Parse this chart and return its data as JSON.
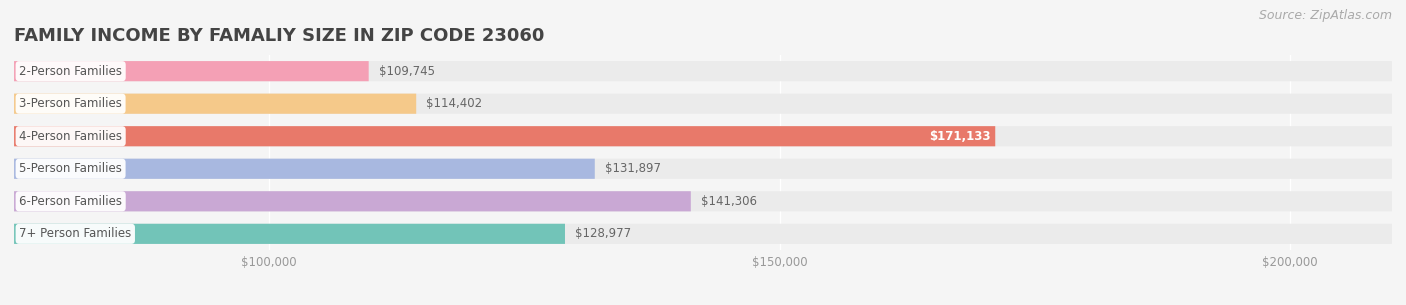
{
  "title": "FAMILY INCOME BY FAMALIY SIZE IN ZIP CODE 23060",
  "source": "Source: ZipAtlas.com",
  "categories": [
    "2-Person Families",
    "3-Person Families",
    "4-Person Families",
    "5-Person Families",
    "6-Person Families",
    "7+ Person Families"
  ],
  "values": [
    109745,
    114402,
    171133,
    131897,
    141306,
    128977
  ],
  "bar_colors": [
    "#f4a0b5",
    "#f5c98a",
    "#e8796a",
    "#a8b8e0",
    "#c9a8d4",
    "#72c4b8"
  ],
  "label_colors": [
    "#888888",
    "#888888",
    "#ffffff",
    "#888888",
    "#888888",
    "#888888"
  ],
  "background_color": "#f5f5f5",
  "bar_bg_color": "#ebebeb",
  "xlim_min": 75000,
  "xlim_max": 210000,
  "xticks": [
    100000,
    150000,
    200000
  ],
  "xtick_labels": [
    "$100,000",
    "$150,000",
    "$200,000"
  ],
  "title_fontsize": 13,
  "label_fontsize": 8.5,
  "value_fontsize": 8.5,
  "source_fontsize": 9
}
